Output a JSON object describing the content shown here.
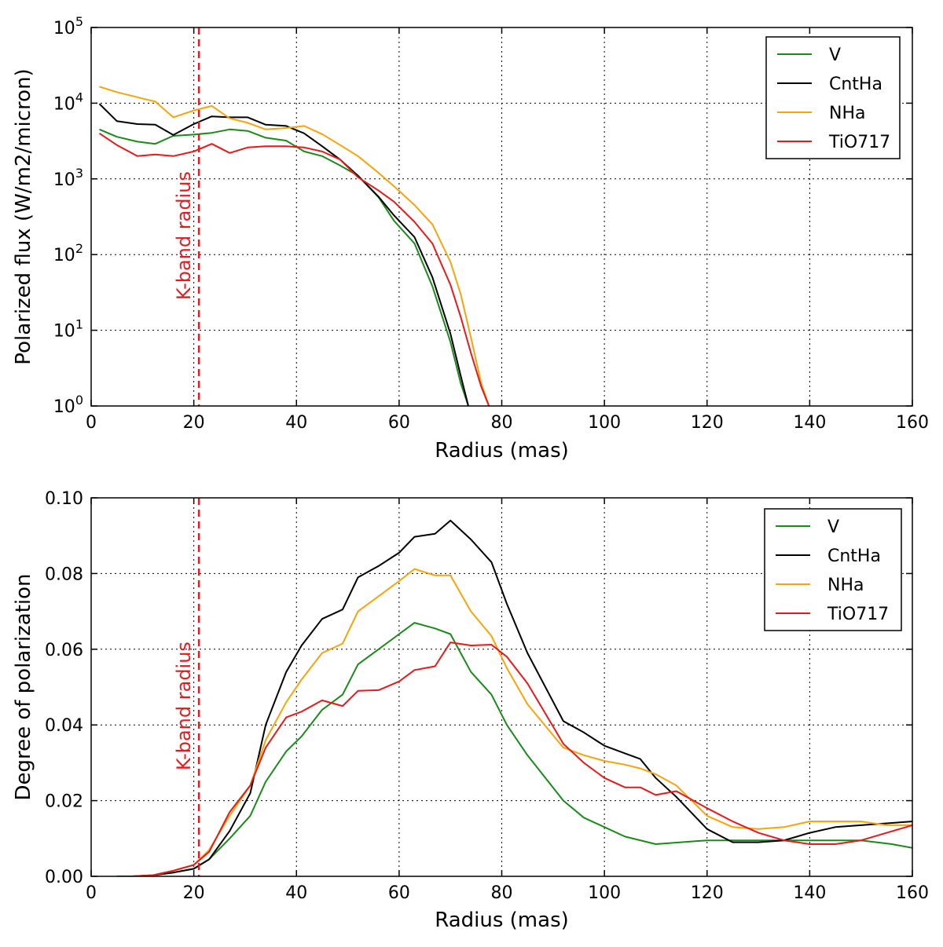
{
  "chart_data": [
    {
      "type": "line",
      "yscale": "log",
      "xlabel": "Radius (mas)",
      "ylabel": "Polarized flux (W/m2/micron)",
      "xlim": [
        0,
        160
      ],
      "ylim": [
        1,
        100000
      ],
      "xticks": [
        0,
        20,
        40,
        60,
        80,
        100,
        120,
        140,
        160
      ],
      "yticks": [
        {
          "value": 1,
          "base": "10",
          "exp": "0"
        },
        {
          "value": 10,
          "base": "10",
          "exp": "1"
        },
        {
          "value": 100,
          "base": "10",
          "exp": "2"
        },
        {
          "value": 1000,
          "base": "10",
          "exp": "3"
        },
        {
          "value": 10000,
          "base": "10",
          "exp": "4"
        },
        {
          "value": 100000,
          "base": "10",
          "exp": "5"
        }
      ],
      "grid": true,
      "legend_position": "top-right",
      "annotation": {
        "text": "K-band radius",
        "x": 21,
        "color": "#e41a1c"
      },
      "series": [
        {
          "name": "V",
          "color": "#1a8a1a",
          "x": [
            1.6,
            5,
            9,
            12.5,
            16,
            20,
            23.5,
            27,
            30.5,
            34,
            38,
            41.5,
            45,
            48.5,
            52,
            56,
            59,
            63,
            66.5,
            70,
            72,
            73.5
          ],
          "y": [
            4500,
            3600,
            3100,
            2900,
            3700,
            3850,
            4050,
            4500,
            4300,
            3500,
            3200,
            2300,
            2000,
            1500,
            1100,
            570,
            280,
            140,
            38,
            7,
            2,
            1
          ]
        },
        {
          "name": "CntHa",
          "color": "#000000",
          "x": [
            1.6,
            5,
            9,
            12.5,
            16,
            20,
            23.5,
            27,
            30.5,
            34,
            38,
            41.5,
            45,
            48.5,
            52,
            56,
            59,
            63,
            66.5,
            70,
            72,
            73.5
          ],
          "y": [
            9800,
            5800,
            5300,
            5200,
            3800,
            5300,
            6700,
            6500,
            6500,
            5200,
            5000,
            4000,
            2700,
            1800,
            1100,
            580,
            330,
            170,
            50,
            9,
            2.5,
            1
          ]
        },
        {
          "name": "NHa",
          "color": "#f5a40c",
          "x": [
            1.6,
            5,
            9,
            12.5,
            16,
            20,
            23.5,
            27,
            30.5,
            34,
            38,
            41.5,
            45,
            48.5,
            52,
            56,
            59,
            63,
            66.5,
            70,
            72,
            74,
            76,
            77.5
          ],
          "y": [
            16500,
            14000,
            12000,
            10500,
            6500,
            8000,
            9200,
            6300,
            5500,
            4500,
            4700,
            5000,
            3900,
            2800,
            2000,
            1200,
            800,
            450,
            250,
            80,
            30,
            8,
            2,
            1
          ]
        },
        {
          "name": "TiO717",
          "color": "#e41a1c",
          "x": [
            1.6,
            5,
            9,
            12.5,
            16,
            20,
            23.5,
            27,
            30.5,
            34,
            38,
            41.5,
            45,
            48.5,
            52,
            56,
            59,
            63,
            66.5,
            70,
            72,
            74,
            76,
            77.5
          ],
          "y": [
            4000,
            2800,
            2000,
            2100,
            2000,
            2300,
            2900,
            2200,
            2600,
            2700,
            2700,
            2600,
            2300,
            1800,
            1050,
            700,
            500,
            270,
            140,
            40,
            15,
            5,
            1.8,
            1
          ]
        }
      ]
    },
    {
      "type": "line",
      "yscale": "linear",
      "xlabel": "Radius (mas)",
      "ylabel": "Degree of polarization",
      "xlim": [
        0,
        160
      ],
      "ylim": [
        0,
        0.1
      ],
      "xticks": [
        0,
        20,
        40,
        60,
        80,
        100,
        120,
        140,
        160
      ],
      "yticks": [
        {
          "value": 0,
          "label": "0.00"
        },
        {
          "value": 0.02,
          "label": "0.02"
        },
        {
          "value": 0.04,
          "label": "0.04"
        },
        {
          "value": 0.06,
          "label": "0.06"
        },
        {
          "value": 0.08,
          "label": "0.08"
        },
        {
          "value": 0.1,
          "label": "0.10"
        }
      ],
      "grid": true,
      "legend_position": "top-right",
      "annotation": {
        "text": "K-band radius",
        "x": 21,
        "color": "#e41a1c"
      },
      "series": [
        {
          "name": "V",
          "color": "#1a8a1a",
          "x": [
            5,
            8,
            12,
            16,
            20,
            23,
            27,
            31,
            34,
            38,
            41,
            45,
            49,
            52,
            56,
            60,
            63,
            67,
            70,
            74,
            78,
            81,
            85,
            92,
            96,
            100,
            104,
            110,
            120,
            130,
            140,
            150,
            156,
            160
          ],
          "y": [
            0,
            0,
            0.0003,
            0.001,
            0.002,
            0.0045,
            0.01,
            0.016,
            0.025,
            0.033,
            0.037,
            0.044,
            0.048,
            0.056,
            0.06,
            0.064,
            0.067,
            0.0655,
            0.064,
            0.054,
            0.048,
            0.04,
            0.032,
            0.02,
            0.0155,
            0.013,
            0.0105,
            0.0085,
            0.0095,
            0.0095,
            0.0095,
            0.0095,
            0.0085,
            0.0075
          ]
        },
        {
          "name": "CntHa",
          "color": "#000000",
          "x": [
            5,
            8,
            12,
            16,
            20,
            23,
            27,
            31,
            34,
            38,
            41,
            45,
            49,
            52,
            56,
            60,
            63,
            67,
            70,
            74,
            78,
            81,
            85,
            92,
            96,
            100,
            104,
            107,
            110,
            114,
            120,
            125,
            130,
            135,
            140,
            145,
            150,
            155,
            160
          ],
          "y": [
            0,
            0,
            0.0003,
            0.001,
            0.002,
            0.0045,
            0.012,
            0.022,
            0.04,
            0.054,
            0.061,
            0.068,
            0.0705,
            0.079,
            0.082,
            0.0855,
            0.0897,
            0.0905,
            0.094,
            0.089,
            0.083,
            0.072,
            0.059,
            0.041,
            0.038,
            0.0345,
            0.0325,
            0.031,
            0.026,
            0.021,
            0.0125,
            0.009,
            0.009,
            0.0095,
            0.0115,
            0.013,
            0.0135,
            0.014,
            0.0145
          ]
        },
        {
          "name": "NHa",
          "color": "#f5a40c",
          "x": [
            5,
            8,
            12,
            16,
            20,
            23,
            27,
            31,
            34,
            38,
            41,
            45,
            49,
            52,
            56,
            60,
            63,
            67,
            70,
            74,
            78,
            81,
            85,
            92,
            96,
            100,
            104,
            107,
            110,
            114,
            120,
            125,
            130,
            135,
            140,
            145,
            150,
            155,
            160
          ],
          "y": [
            0,
            0,
            0.0003,
            0.0015,
            0.003,
            0.007,
            0.016,
            0.024,
            0.036,
            0.046,
            0.052,
            0.059,
            0.0615,
            0.07,
            0.074,
            0.078,
            0.0812,
            0.0795,
            0.0795,
            0.07,
            0.0635,
            0.055,
            0.0455,
            0.034,
            0.032,
            0.0305,
            0.0295,
            0.0285,
            0.027,
            0.024,
            0.016,
            0.013,
            0.0125,
            0.013,
            0.0145,
            0.0145,
            0.0145,
            0.0135,
            0.0135
          ]
        },
        {
          "name": "TiO717",
          "color": "#e41a1c",
          "x": [
            5,
            8,
            12,
            16,
            20,
            23,
            27,
            31,
            34,
            38,
            41,
            45,
            49,
            52,
            56,
            60,
            63,
            67,
            70,
            74,
            78,
            81,
            85,
            92,
            96,
            100,
            104,
            107,
            110,
            114,
            120,
            125,
            130,
            135,
            140,
            145,
            150,
            155,
            160
          ],
          "y": [
            0,
            0,
            0.0003,
            0.0015,
            0.003,
            0.0065,
            0.017,
            0.024,
            0.034,
            0.042,
            0.0435,
            0.0465,
            0.045,
            0.049,
            0.0492,
            0.0515,
            0.0545,
            0.0555,
            0.0618,
            0.061,
            0.0612,
            0.058,
            0.051,
            0.035,
            0.03,
            0.026,
            0.0235,
            0.0235,
            0.0215,
            0.0225,
            0.018,
            0.0145,
            0.0115,
            0.0095,
            0.0085,
            0.0085,
            0.0095,
            0.0115,
            0.0135
          ]
        }
      ]
    }
  ]
}
